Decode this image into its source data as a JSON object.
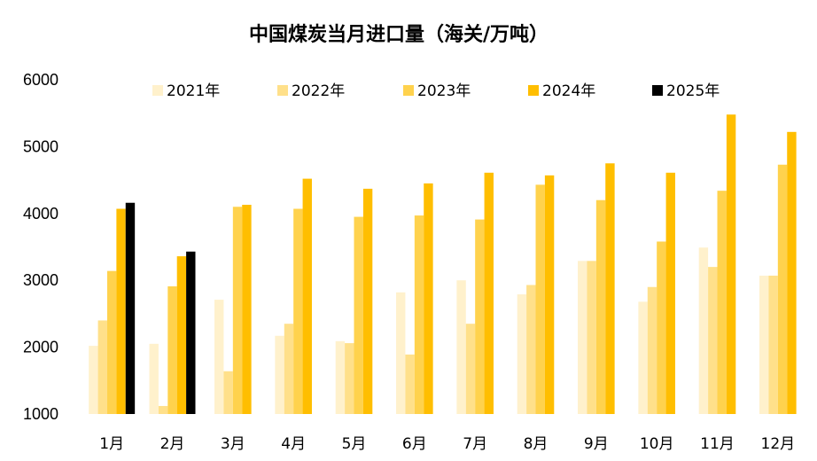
{
  "chart_data": {
    "type": "bar",
    "title": "中国煤炭当月进口量（海关/万吨）",
    "ylim": [
      1000,
      6000
    ],
    "yticks": [
      "1000",
      "2000",
      "3000",
      "4000",
      "5000",
      "6000"
    ],
    "grid": false,
    "legend_position": "top",
    "categories": [
      "1月",
      "2月",
      "3月",
      "4月",
      "5月",
      "6月",
      "7月",
      "8月",
      "9月",
      "10月",
      "11月",
      "12月"
    ],
    "series": [
      {
        "name": "2021年",
        "color": "#FFF1CC",
        "values": [
          2020,
          2050,
          2710,
          2170,
          2090,
          2820,
          3000,
          2790,
          3290,
          2680,
          3490,
          3070
        ]
      },
      {
        "name": "2022年",
        "color": "#FFE08A",
        "values": [
          2400,
          1120,
          1640,
          2350,
          2060,
          1890,
          2350,
          2930,
          3290,
          2900,
          3200,
          3070
        ]
      },
      {
        "name": "2023年",
        "color": "#FFD24D",
        "values": [
          3140,
          2910,
          4100,
          4070,
          3950,
          3970,
          3910,
          4430,
          4200,
          3580,
          4340,
          4730
        ]
      },
      {
        "name": "2024年",
        "color": "#FFBE00",
        "values": [
          4070,
          3360,
          4130,
          4520,
          4370,
          4450,
          4610,
          4570,
          4750,
          4610,
          5480,
          5220
        ]
      },
      {
        "name": "2025年",
        "color": "#000000",
        "values": [
          4160,
          3430,
          null,
          null,
          null,
          null,
          null,
          null,
          null,
          null,
          null,
          null
        ]
      }
    ]
  }
}
